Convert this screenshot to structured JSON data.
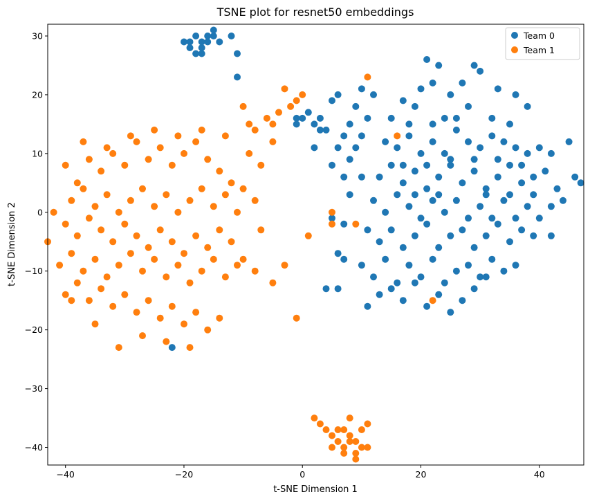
{
  "chart_data": {
    "type": "scatter",
    "title": "TSNE plot for resnet50 embeddings",
    "xlabel": "t-SNE Dimension 1",
    "ylabel": "t-SNE Dimension 2",
    "xlim": [
      -43,
      47.5
    ],
    "ylim": [
      -43,
      32
    ],
    "xticks": [
      -40,
      -20,
      0,
      20,
      40
    ],
    "yticks": [
      -40,
      -30,
      -20,
      -10,
      0,
      10,
      20,
      30
    ],
    "xtick_labels": [
      "−40",
      "−20",
      "0",
      "20",
      "40"
    ],
    "ytick_labels": [
      "−40",
      "−30",
      "−20",
      "−10",
      "0",
      "10",
      "20",
      "30"
    ],
    "grid": false,
    "legend_position": "top-right",
    "series": [
      {
        "name": "Team 0",
        "color": "#1f77b4",
        "points": [
          [
            -19,
            29
          ],
          [
            -18,
            30
          ],
          [
            -17,
            28
          ],
          [
            -16,
            30
          ],
          [
            -18,
            27
          ],
          [
            -17,
            29
          ],
          [
            -15,
            31
          ],
          [
            -16,
            29
          ],
          [
            -19,
            28
          ],
          [
            -14,
            29
          ],
          [
            -11,
            27
          ],
          [
            -12,
            30
          ],
          [
            -11,
            23
          ],
          [
            -17,
            27
          ],
          [
            -15,
            30
          ],
          [
            -20,
            29
          ],
          [
            -1,
            15
          ],
          [
            0,
            16
          ],
          [
            1,
            17
          ],
          [
            2,
            15
          ],
          [
            3,
            16
          ],
          [
            4,
            14
          ],
          [
            5,
            19
          ],
          [
            6,
            20
          ],
          [
            3,
            14
          ],
          [
            2,
            11
          ],
          [
            -1,
            16
          ],
          [
            10,
            21
          ],
          [
            12,
            20
          ],
          [
            9,
            18
          ],
          [
            11,
            16
          ],
          [
            8,
            15
          ],
          [
            10,
            13
          ],
          [
            9,
            11
          ],
          [
            6,
            11
          ],
          [
            7,
            13
          ],
          [
            8,
            9
          ],
          [
            5,
            8
          ],
          [
            7,
            6
          ],
          [
            10,
            6
          ],
          [
            8,
            3
          ],
          [
            15,
            16
          ],
          [
            17,
            19
          ],
          [
            20,
            21
          ],
          [
            22,
            22
          ],
          [
            25,
            20
          ],
          [
            27,
            22
          ],
          [
            30,
            24
          ],
          [
            33,
            21
          ],
          [
            36,
            20
          ],
          [
            38,
            18
          ],
          [
            21,
            26
          ],
          [
            23,
            25
          ],
          [
            29,
            25
          ],
          [
            14,
            12
          ],
          [
            16,
            11
          ],
          [
            18,
            13
          ],
          [
            20,
            10
          ],
          [
            22,
            12
          ],
          [
            24,
            10
          ],
          [
            26,
            14
          ],
          [
            28,
            12
          ],
          [
            30,
            11
          ],
          [
            32,
            13
          ],
          [
            34,
            12
          ],
          [
            36,
            11
          ],
          [
            38,
            10
          ],
          [
            40,
            11
          ],
          [
            42,
            10
          ],
          [
            13,
            6
          ],
          [
            15,
            8
          ],
          [
            17,
            5
          ],
          [
            19,
            7
          ],
          [
            21,
            4
          ],
          [
            23,
            6
          ],
          [
            25,
            8
          ],
          [
            27,
            5
          ],
          [
            29,
            7
          ],
          [
            31,
            4
          ],
          [
            33,
            6
          ],
          [
            35,
            8
          ],
          [
            37,
            5
          ],
          [
            39,
            6
          ],
          [
            41,
            7
          ],
          [
            43,
            4
          ],
          [
            45,
            12
          ],
          [
            46,
            6
          ],
          [
            47,
            5
          ],
          [
            12,
            2
          ],
          [
            14,
            0
          ],
          [
            16,
            3
          ],
          [
            18,
            1
          ],
          [
            20,
            -1
          ],
          [
            22,
            2
          ],
          [
            24,
            0
          ],
          [
            26,
            2
          ],
          [
            28,
            -1
          ],
          [
            30,
            1
          ],
          [
            32,
            -1
          ],
          [
            34,
            2
          ],
          [
            36,
            -1
          ],
          [
            38,
            1
          ],
          [
            40,
            -1
          ],
          [
            42,
            1
          ],
          [
            44,
            2
          ],
          [
            11,
            -3
          ],
          [
            13,
            -5
          ],
          [
            15,
            -3
          ],
          [
            17,
            -6
          ],
          [
            19,
            -4
          ],
          [
            21,
            -2
          ],
          [
            23,
            -6
          ],
          [
            25,
            -4
          ],
          [
            27,
            -3
          ],
          [
            29,
            -6
          ],
          [
            31,
            -4
          ],
          [
            33,
            -2
          ],
          [
            35,
            -5
          ],
          [
            37,
            -3
          ],
          [
            39,
            -4
          ],
          [
            42,
            -4
          ],
          [
            10,
            -9
          ],
          [
            12,
            -11
          ],
          [
            14,
            -8
          ],
          [
            16,
            -12
          ],
          [
            18,
            -9
          ],
          [
            20,
            -11
          ],
          [
            22,
            -8
          ],
          [
            24,
            -12
          ],
          [
            26,
            -10
          ],
          [
            28,
            -9
          ],
          [
            30,
            -11
          ],
          [
            32,
            -8
          ],
          [
            34,
            -10
          ],
          [
            36,
            -9
          ],
          [
            11,
            -16
          ],
          [
            13,
            -14
          ],
          [
            15,
            -13
          ],
          [
            17,
            -15
          ],
          [
            19,
            -12
          ],
          [
            21,
            -16
          ],
          [
            23,
            -14
          ],
          [
            25,
            -17
          ],
          [
            27,
            -15
          ],
          [
            29,
            -13
          ],
          [
            31,
            -11
          ],
          [
            6,
            -13
          ],
          [
            4,
            -13
          ],
          [
            7,
            -8
          ],
          [
            6,
            -7
          ],
          [
            7,
            -2
          ],
          [
            5,
            -1
          ],
          [
            -22,
            -23
          ],
          [
            19,
            18
          ],
          [
            24,
            16
          ],
          [
            28,
            18
          ],
          [
            32,
            16
          ],
          [
            35,
            15
          ],
          [
            26,
            16
          ],
          [
            22,
            15
          ],
          [
            18,
            15
          ],
          [
            17,
            8
          ],
          [
            21,
            8
          ],
          [
            25,
            9
          ],
          [
            29,
            9
          ],
          [
            33,
            9
          ],
          [
            37,
            8
          ],
          [
            19,
            3
          ],
          [
            23,
            3
          ],
          [
            31,
            3
          ],
          [
            35,
            3
          ],
          [
            39,
            3
          ]
        ]
      },
      {
        "name": "Team 1",
        "color": "#ff7f0e",
        "points": [
          [
            -40,
            8
          ],
          [
            -38,
            5
          ],
          [
            -36,
            9
          ],
          [
            -34,
            7
          ],
          [
            -32,
            10
          ],
          [
            -30,
            8
          ],
          [
            -28,
            12
          ],
          [
            -26,
            9
          ],
          [
            -24,
            11
          ],
          [
            -22,
            8
          ],
          [
            -20,
            10
          ],
          [
            -18,
            12
          ],
          [
            -16,
            9
          ],
          [
            -14,
            7
          ],
          [
            -12,
            5
          ],
          [
            -10,
            4
          ],
          [
            -39,
            2
          ],
          [
            -37,
            4
          ],
          [
            -35,
            1
          ],
          [
            -33,
            3
          ],
          [
            -31,
            0
          ],
          [
            -29,
            2
          ],
          [
            -27,
            4
          ],
          [
            -25,
            1
          ],
          [
            -23,
            3
          ],
          [
            -21,
            0
          ],
          [
            -19,
            2
          ],
          [
            -17,
            4
          ],
          [
            -15,
            1
          ],
          [
            -13,
            3
          ],
          [
            -11,
            0
          ],
          [
            -8,
            2
          ],
          [
            -42,
            0
          ],
          [
            -40,
            -2
          ],
          [
            -38,
            -4
          ],
          [
            -36,
            -1
          ],
          [
            -34,
            -3
          ],
          [
            -32,
            -5
          ],
          [
            -30,
            -2
          ],
          [
            -28,
            -4
          ],
          [
            -26,
            -6
          ],
          [
            -24,
            -3
          ],
          [
            -22,
            -5
          ],
          [
            -20,
            -7
          ],
          [
            -18,
            -4
          ],
          [
            -16,
            -6
          ],
          [
            -14,
            -3
          ],
          [
            -12,
            -5
          ],
          [
            -41,
            -9
          ],
          [
            -39,
            -7
          ],
          [
            -37,
            -10
          ],
          [
            -35,
            -8
          ],
          [
            -33,
            -11
          ],
          [
            -31,
            -9
          ],
          [
            -29,
            -7
          ],
          [
            -27,
            -10
          ],
          [
            -25,
            -8
          ],
          [
            -23,
            -11
          ],
          [
            -21,
            -9
          ],
          [
            -19,
            -12
          ],
          [
            -17,
            -10
          ],
          [
            -15,
            -8
          ],
          [
            -13,
            -11
          ],
          [
            -11,
            -9
          ],
          [
            -40,
            -14
          ],
          [
            -38,
            -12
          ],
          [
            -36,
            -15
          ],
          [
            -34,
            -13
          ],
          [
            -32,
            -16
          ],
          [
            -30,
            -14
          ],
          [
            -28,
            -17
          ],
          [
            -26,
            -15
          ],
          [
            -24,
            -18
          ],
          [
            -22,
            -16
          ],
          [
            -20,
            -19
          ],
          [
            -18,
            -17
          ],
          [
            -16,
            -20
          ],
          [
            -14,
            -18
          ],
          [
            -31,
            -23
          ],
          [
            -27,
            -21
          ],
          [
            -23,
            -22
          ],
          [
            -19,
            -23
          ],
          [
            -35,
            -19
          ],
          [
            -39,
            -15
          ],
          [
            -43,
            -5
          ],
          [
            -37,
            12
          ],
          [
            -33,
            11
          ],
          [
            -29,
            13
          ],
          [
            -25,
            14
          ],
          [
            -21,
            13
          ],
          [
            -17,
            14
          ],
          [
            -13,
            13
          ],
          [
            -9,
            10
          ],
          [
            -7,
            8
          ],
          [
            -5,
            12
          ],
          [
            -8,
            14
          ],
          [
            -6,
            16
          ],
          [
            -4,
            17
          ],
          [
            -2,
            18
          ],
          [
            -1,
            19
          ],
          [
            0,
            20
          ],
          [
            -3,
            21
          ],
          [
            -9,
            15
          ],
          [
            -10,
            18
          ],
          [
            -5,
            15
          ],
          [
            -10,
            -8
          ],
          [
            -8,
            -10
          ],
          [
            -7,
            -3
          ],
          [
            -5,
            -12
          ],
          [
            -3,
            -9
          ],
          [
            -1,
            -18
          ],
          [
            1,
            -4
          ],
          [
            5,
            -2
          ],
          [
            5,
            0
          ],
          [
            9,
            -2
          ],
          [
            11,
            23
          ],
          [
            16,
            13
          ],
          [
            22,
            -15
          ],
          [
            2,
            -35
          ],
          [
            3,
            -36
          ],
          [
            4,
            -37
          ],
          [
            5,
            -38
          ],
          [
            6,
            -39
          ],
          [
            7,
            -40
          ],
          [
            8,
            -38
          ],
          [
            9,
            -39
          ],
          [
            10,
            -37
          ],
          [
            11,
            -36
          ],
          [
            8,
            -35
          ],
          [
            7,
            -41
          ],
          [
            9,
            -42
          ],
          [
            10,
            -40
          ],
          [
            6,
            -37
          ],
          [
            8,
            -39
          ],
          [
            5,
            -40
          ],
          [
            11,
            -40
          ],
          [
            7,
            -37
          ],
          [
            9,
            -41
          ]
        ]
      }
    ]
  }
}
